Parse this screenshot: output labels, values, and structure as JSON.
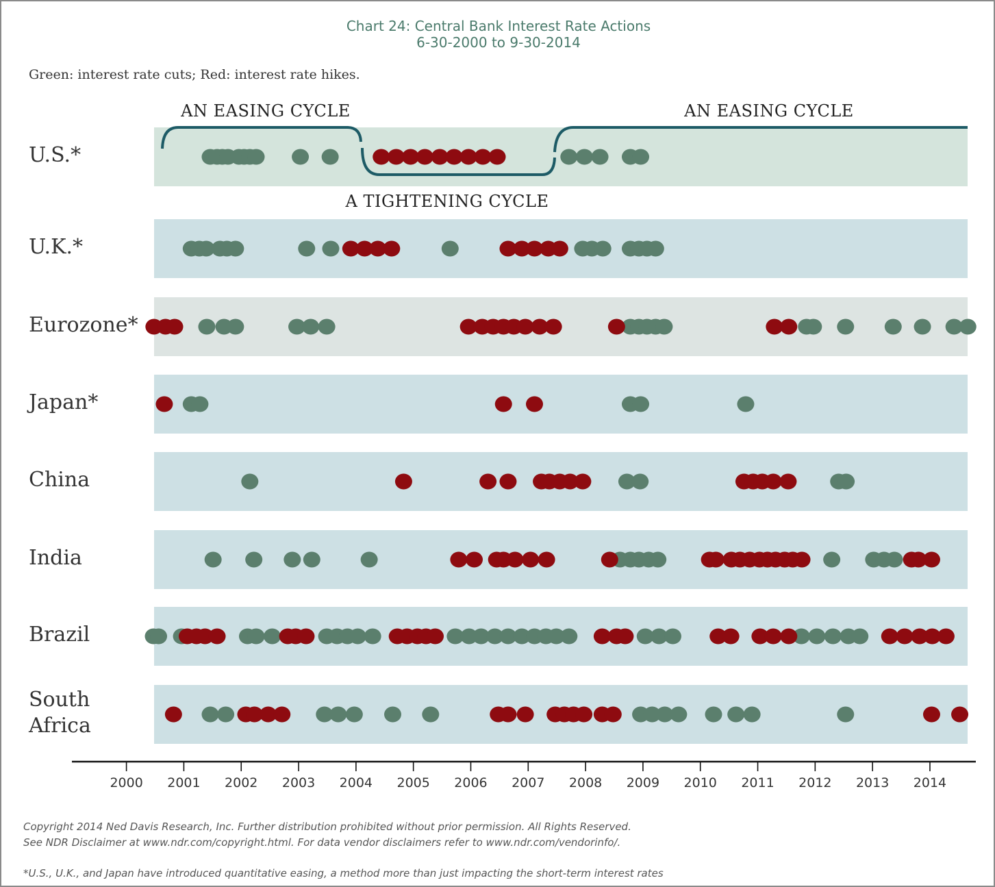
{
  "chart_data": {
    "type": "dot_timeline",
    "title": "Chart 24: Central Bank Interest Rate Actions",
    "subtitle": "6-30-2000 to 9-30-2014",
    "note": "Green: interest rate cuts; Red: interest rate hikes.",
    "annotations": [
      "AN EASING CYCLE",
      "A TIGHTENING CYCLE",
      "AN EASING CYCLE"
    ],
    "footnotes": [
      "Copyright 2014 Ned Davis Research, Inc. Further distribution prohibited without prior permission. All Rights Reserved.",
      "See NDR Disclaimer at www.ndr.com/copyright.html. For data vendor disclaimers refer to www.ndr.com/vendorinfo/.",
      "*U.S., U.K., and Japan have introduced quantitative easing, a method more than just impacting the short-term interest rates"
    ],
    "xlim": [
      1999.05,
      2014.8
    ],
    "xticks": [
      2000,
      2001,
      2002,
      2003,
      2004,
      2005,
      2006,
      2007,
      2008,
      2009,
      2010,
      2011,
      2012,
      2013,
      2014
    ],
    "cut_color": "#5b7f6d",
    "hike_color": "#8e0b10",
    "series": [
      {
        "name": "U.S.*",
        "band_color": "#d4e4dc",
        "cuts": [
          2001.46,
          2001.58,
          2001.67,
          2001.77,
          2001.96,
          2002.05,
          2002.15,
          2002.26,
          2003.03,
          2003.55,
          2007.71,
          2007.98,
          2008.25,
          2008.78,
          2008.96
        ],
        "hikes": [
          2004.44,
          2004.7,
          2004.95,
          2005.2,
          2005.46,
          2005.71,
          2005.96,
          2006.21,
          2006.46
        ]
      },
      {
        "name": "U.K.*",
        "band_color": "#cde0e4",
        "cuts": [
          2001.13,
          2001.27,
          2001.39,
          2001.63,
          2001.75,
          2001.9,
          2003.14,
          2003.56,
          2005.64,
          2007.95,
          2008.11,
          2008.3,
          2008.78,
          2008.93,
          2009.07,
          2009.22
        ],
        "hikes": [
          2003.91,
          2004.15,
          2004.38,
          2004.62,
          2006.65,
          2006.89,
          2007.11,
          2007.35,
          2007.55
        ]
      },
      {
        "name": "Eurozone*",
        "band_color": "#dde4e2",
        "cuts": [
          2001.4,
          2001.7,
          2001.9,
          2002.97,
          2003.21,
          2003.49,
          2008.78,
          2008.93,
          2009.07,
          2009.22,
          2009.37,
          2011.85,
          2011.97,
          2012.53,
          2013.36,
          2013.87,
          2014.42,
          2014.66
        ],
        "hikes": [
          2000.48,
          2000.68,
          2000.84,
          2005.96,
          2006.2,
          2006.39,
          2006.57,
          2006.75,
          2006.95,
          2007.2,
          2007.44,
          2008.54,
          2011.29,
          2011.54
        ]
      },
      {
        "name": "Japan*",
        "band_color": "#cde0e4",
        "cuts": [
          2001.13,
          2001.28,
          2008.78,
          2008.96,
          2010.79
        ],
        "hikes": [
          2000.66,
          2006.57,
          2007.11
        ]
      },
      {
        "name": "China",
        "band_color": "#cde0e4",
        "cuts": [
          2002.15,
          2008.72,
          2008.95,
          2012.41,
          2012.54
        ],
        "hikes": [
          2004.83,
          2006.3,
          2006.65,
          2007.23,
          2007.37,
          2007.55,
          2007.73,
          2007.95,
          2010.76,
          2010.92,
          2011.08,
          2011.27,
          2011.53
        ]
      },
      {
        "name": "India",
        "band_color": "#cde0e4",
        "cuts": [
          2001.51,
          2002.22,
          2002.89,
          2003.23,
          2004.23,
          2008.6,
          2008.78,
          2008.93,
          2009.1,
          2009.26,
          2012.29,
          2013.02,
          2013.2,
          2013.38
        ],
        "hikes": [
          2005.79,
          2006.06,
          2006.45,
          2006.57,
          2006.77,
          2007.04,
          2007.32,
          2008.42,
          2010.16,
          2010.27,
          2010.54,
          2010.69,
          2010.86,
          2011.03,
          2011.17,
          2011.31,
          2011.47,
          2011.61,
          2011.77,
          2013.68,
          2013.8,
          2014.03
        ]
      },
      {
        "name": "Brazil",
        "band_color": "#cde0e4",
        "cuts": [
          2000.47,
          2000.56,
          2000.96,
          2002.11,
          2002.26,
          2002.54,
          2003.49,
          2003.67,
          2003.85,
          2004.03,
          2004.29,
          2005.73,
          2005.97,
          2006.18,
          2006.42,
          2006.65,
          2006.89,
          2007.11,
          2007.31,
          2007.49,
          2007.71,
          2009.04,
          2009.28,
          2009.52,
          2011.76,
          2012.03,
          2012.31,
          2012.58,
          2012.78
        ],
        "hikes": [
          2001.06,
          2001.22,
          2001.37,
          2001.58,
          2002.81,
          2002.95,
          2003.13,
          2004.72,
          2004.89,
          2005.07,
          2005.22,
          2005.38,
          2008.29,
          2008.54,
          2008.69,
          2010.31,
          2010.53,
          2011.04,
          2011.27,
          2011.54,
          2013.3,
          2013.56,
          2013.82,
          2014.04,
          2014.28
        ]
      },
      {
        "name": "South Africa",
        "band_color": "#cde0e4",
        "cuts": [
          2001.46,
          2001.73,
          2003.45,
          2003.69,
          2003.97,
          2004.64,
          2005.3,
          2008.96,
          2009.16,
          2009.38,
          2009.62,
          2010.23,
          2010.62,
          2010.9,
          2012.53
        ],
        "hikes": [
          2000.82,
          2002.08,
          2002.23,
          2002.47,
          2002.71,
          2006.48,
          2006.65,
          2006.95,
          2007.47,
          2007.63,
          2007.79,
          2007.97,
          2008.29,
          2008.48,
          2014.03,
          2014.52
        ]
      }
    ]
  }
}
